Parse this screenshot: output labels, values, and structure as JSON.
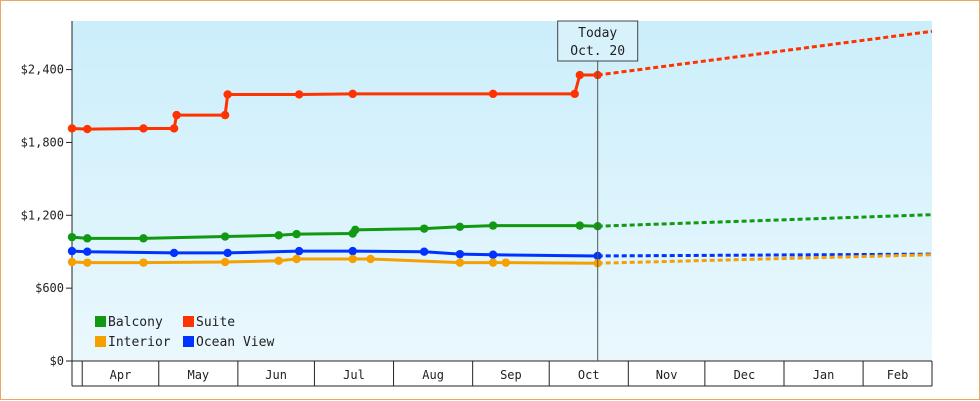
{
  "chart_data": {
    "type": "line",
    "title": "",
    "xlabel": "",
    "ylabel": "",
    "ylim": [
      0,
      2800
    ],
    "xlim": [
      "2023-03-28",
      "2024-02-28"
    ],
    "y_ticks": [
      0,
      600,
      1200,
      1800,
      2400
    ],
    "y_tick_labels": [
      "$0",
      "$600",
      "$1,200",
      "$1,800",
      "$2,400"
    ],
    "month_labels": [
      {
        "label": "Apr",
        "start": "2023-04-01",
        "end": "2023-05-01"
      },
      {
        "label": "May",
        "start": "2023-05-01",
        "end": "2023-06-01"
      },
      {
        "label": "Jun",
        "start": "2023-06-01",
        "end": "2023-07-01"
      },
      {
        "label": "Jul",
        "start": "2023-07-01",
        "end": "2023-08-01"
      },
      {
        "label": "Aug",
        "start": "2023-08-01",
        "end": "2023-09-01"
      },
      {
        "label": "Sep",
        "start": "2023-09-01",
        "end": "2023-10-01"
      },
      {
        "label": "Oct",
        "start": "2023-10-01",
        "end": "2023-11-01"
      },
      {
        "label": "Nov",
        "start": "2023-11-01",
        "end": "2023-12-01"
      },
      {
        "label": "Dec",
        "start": "2023-12-01",
        "end": "2024-01-01"
      },
      {
        "label": "Jan",
        "start": "2024-01-01",
        "end": "2024-02-01"
      },
      {
        "label": "Feb",
        "start": "2024-02-01",
        "end": "2024-03-01"
      }
    ],
    "today": {
      "date": "2023-10-20",
      "line1": "Today",
      "line2": "Oct. 20"
    },
    "grid": false,
    "legend": {
      "position": "bottom-left"
    },
    "series": [
      {
        "name": "Suite",
        "color": "#ff3300",
        "points": [
          [
            "2023-03-28",
            1915
          ],
          [
            "2023-04-03",
            1910
          ],
          [
            "2023-04-25",
            1915
          ],
          [
            "2023-05-07",
            1915
          ],
          [
            "2023-05-08",
            2025
          ],
          [
            "2023-05-27",
            2025
          ],
          [
            "2023-05-28",
            2195
          ],
          [
            "2023-06-25",
            2195
          ],
          [
            "2023-07-16",
            2200
          ],
          [
            "2023-09-09",
            2200
          ],
          [
            "2023-10-11",
            2200
          ],
          [
            "2023-10-13",
            2355
          ],
          [
            "2023-10-20",
            2355
          ]
        ],
        "projection": [
          [
            "2023-10-20",
            2355
          ],
          [
            "2024-02-28",
            2715
          ]
        ]
      },
      {
        "name": "Balcony",
        "color": "#119911",
        "points": [
          [
            "2023-03-28",
            1020
          ],
          [
            "2023-04-03",
            1010
          ],
          [
            "2023-04-25",
            1010
          ],
          [
            "2023-05-27",
            1025
          ],
          [
            "2023-06-17",
            1035
          ],
          [
            "2023-06-24",
            1045
          ],
          [
            "2023-07-16",
            1050
          ],
          [
            "2023-07-17",
            1080
          ],
          [
            "2023-08-13",
            1090
          ],
          [
            "2023-08-27",
            1105
          ],
          [
            "2023-09-09",
            1115
          ],
          [
            "2023-10-13",
            1115
          ],
          [
            "2023-10-20",
            1110
          ]
        ],
        "projection": [
          [
            "2023-10-20",
            1110
          ],
          [
            "2024-02-28",
            1205
          ]
        ]
      },
      {
        "name": "Ocean View",
        "color": "#0033ff",
        "points": [
          [
            "2023-03-28",
            905
          ],
          [
            "2023-04-03",
            900
          ],
          [
            "2023-05-07",
            890
          ],
          [
            "2023-05-28",
            890
          ],
          [
            "2023-06-25",
            905
          ],
          [
            "2023-07-16",
            905
          ],
          [
            "2023-08-13",
            900
          ],
          [
            "2023-08-27",
            880
          ],
          [
            "2023-09-09",
            875
          ],
          [
            "2023-10-20",
            865
          ]
        ],
        "projection": [
          [
            "2023-10-20",
            865
          ],
          [
            "2024-02-28",
            880
          ]
        ]
      },
      {
        "name": "Interior",
        "color": "#f5a000",
        "points": [
          [
            "2023-03-28",
            815
          ],
          [
            "2023-04-03",
            810
          ],
          [
            "2023-04-25",
            810
          ],
          [
            "2023-05-27",
            815
          ],
          [
            "2023-06-17",
            825
          ],
          [
            "2023-06-24",
            840
          ],
          [
            "2023-07-16",
            840
          ],
          [
            "2023-07-23",
            840
          ],
          [
            "2023-08-27",
            810
          ],
          [
            "2023-09-09",
            810
          ],
          [
            "2023-09-14",
            810
          ],
          [
            "2023-10-20",
            805
          ]
        ],
        "projection": [
          [
            "2023-10-20",
            805
          ],
          [
            "2024-02-28",
            875
          ]
        ]
      }
    ],
    "legend_order": [
      [
        {
          "name": "Balcony",
          "color": "#119911"
        },
        {
          "name": "Suite",
          "color": "#ff3300"
        }
      ],
      [
        {
          "name": "Interior",
          "color": "#f5a000"
        },
        {
          "name": "Ocean View",
          "color": "#0033ff"
        }
      ]
    ]
  }
}
